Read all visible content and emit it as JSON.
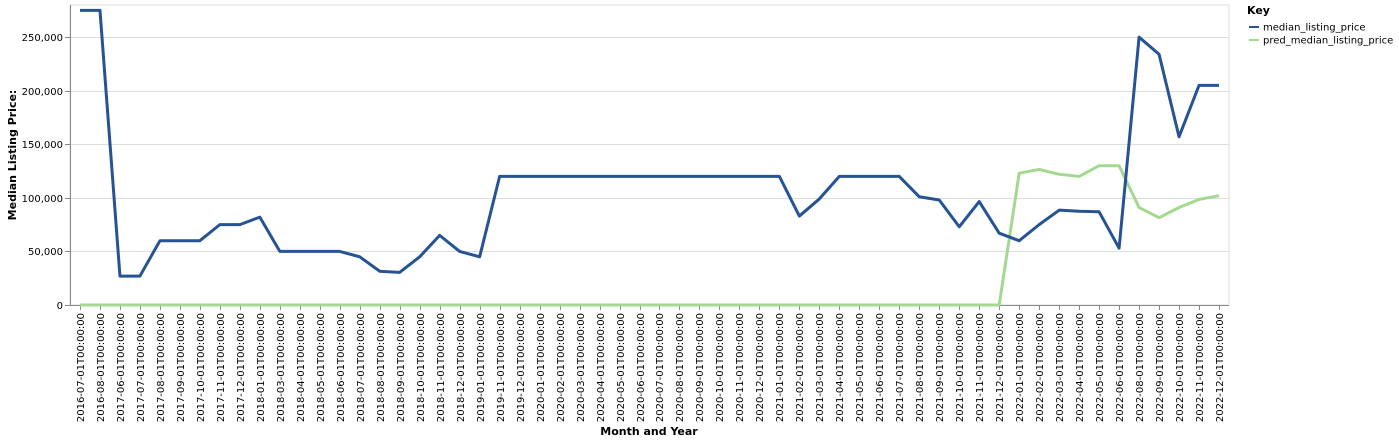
{
  "chart_data": {
    "type": "line",
    "title": "",
    "xlabel": "Month and Year",
    "ylabel": "Median Listing Price:",
    "ylim": [
      0,
      280000
    ],
    "yticks": [
      0,
      50000,
      100000,
      150000,
      200000,
      250000
    ],
    "ytick_labels": [
      "0",
      "50,000",
      "100,000",
      "150,000",
      "200,000",
      "250,000"
    ],
    "grid": "horizontal",
    "legend": {
      "title": "Key",
      "position": "top-right"
    },
    "x": [
      "2016-07-01T00:00:00",
      "2016-08-01T00:00:00",
      "2017-06-01T00:00:00",
      "2017-07-01T00:00:00",
      "2017-08-01T00:00:00",
      "2017-09-01T00:00:00",
      "2017-10-01T00:00:00",
      "2017-11-01T00:00:00",
      "2017-12-01T00:00:00",
      "2018-01-01T00:00:00",
      "2018-03-01T00:00:00",
      "2018-04-01T00:00:00",
      "2018-05-01T00:00:00",
      "2018-06-01T00:00:00",
      "2018-07-01T00:00:00",
      "2018-08-01T00:00:00",
      "2018-09-01T00:00:00",
      "2018-10-01T00:00:00",
      "2018-11-01T00:00:00",
      "2018-12-01T00:00:00",
      "2019-01-01T00:00:00",
      "2019-11-01T00:00:00",
      "2019-12-01T00:00:00",
      "2020-01-01T00:00:00",
      "2020-02-01T00:00:00",
      "2020-03-01T00:00:00",
      "2020-04-01T00:00:00",
      "2020-05-01T00:00:00",
      "2020-06-01T00:00:00",
      "2020-07-01T00:00:00",
      "2020-08-01T00:00:00",
      "2020-09-01T00:00:00",
      "2020-10-01T00:00:00",
      "2020-11-01T00:00:00",
      "2020-12-01T00:00:00",
      "2021-01-01T00:00:00",
      "2021-02-01T00:00:00",
      "2021-03-01T00:00:00",
      "2021-04-01T00:00:00",
      "2021-05-01T00:00:00",
      "2021-06-01T00:00:00",
      "2021-07-01T00:00:00",
      "2021-08-01T00:00:00",
      "2021-09-01T00:00:00",
      "2021-10-01T00:00:00",
      "2021-11-01T00:00:00",
      "2021-12-01T00:00:00",
      "2022-01-01T00:00:00",
      "2022-02-01T00:00:00",
      "2022-03-01T00:00:00",
      "2022-04-01T00:00:00",
      "2022-05-01T00:00:00",
      "2022-06-01T00:00:00",
      "2022-08-01T00:00:00",
      "2022-09-01T00:00:00",
      "2022-10-01T00:00:00",
      "2022-11-01T00:00:00",
      "2022-12-01T00:00:00"
    ],
    "series": [
      {
        "name": "median_listing_price",
        "color": "#255394",
        "values": [
          275000,
          275000,
          27000,
          27000,
          60000,
          60000,
          60000,
          75000,
          75000,
          82000,
          50000,
          50000,
          50000,
          50000,
          45000,
          31500,
          30500,
          45000,
          65000,
          50000,
          45000,
          120000,
          120000,
          120000,
          120000,
          120000,
          120000,
          120000,
          120000,
          120000,
          120000,
          120000,
          120000,
          120000,
          120000,
          120000,
          83000,
          99000,
          120000,
          120000,
          120000,
          120000,
          101000,
          98000,
          73000,
          96500,
          67000,
          60000,
          75000,
          88500,
          87500,
          87000,
          53000,
          250000,
          234000,
          157000,
          205000,
          205000
        ]
      },
      {
        "name": "pred_median_listing_price",
        "color": "#a3d98e",
        "values": [
          0,
          0,
          0,
          0,
          0,
          0,
          0,
          0,
          0,
          0,
          0,
          0,
          0,
          0,
          0,
          0,
          0,
          0,
          0,
          0,
          0,
          0,
          0,
          0,
          0,
          0,
          0,
          0,
          0,
          0,
          0,
          0,
          0,
          0,
          0,
          0,
          0,
          0,
          0,
          0,
          0,
          0,
          0,
          0,
          0,
          0,
          0,
          123000,
          126500,
          122000,
          120000,
          130000,
          130000,
          91000,
          81500,
          91000,
          98500,
          102000
        ]
      }
    ]
  }
}
